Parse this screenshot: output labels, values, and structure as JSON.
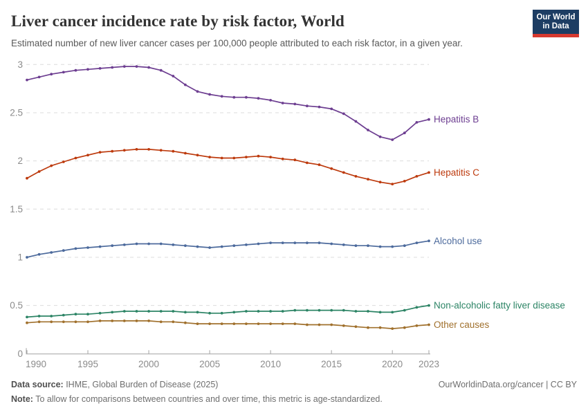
{
  "header": {
    "title": "Liver cancer incidence rate by risk factor, World",
    "subtitle": "Estimated number of new liver cancer cases per 100,000 people attributed to each risk factor, in a given year.",
    "logo": {
      "line1": "Our World",
      "line2": "in Data",
      "bg_color": "#1d3d63",
      "accent_color": "#d7392f"
    }
  },
  "chart_data": {
    "type": "line",
    "title": "Liver cancer incidence rate by risk factor, World",
    "xlabel": "",
    "ylabel": "",
    "ylim": [
      0,
      3
    ],
    "yticks": [
      0,
      0.5,
      1,
      1.5,
      2,
      2.5,
      3
    ],
    "xticks": [
      1990,
      1995,
      2000,
      2005,
      2010,
      2015,
      2020,
      2023
    ],
    "grid": true,
    "grid_color": "#dcdcdc",
    "axis_color": "#a1a1a1",
    "tick_label_color": "#8b8b8b",
    "legend_position": "right-of-line-ends",
    "x": [
      1990,
      1991,
      1992,
      1993,
      1994,
      1995,
      1996,
      1997,
      1998,
      1999,
      2000,
      2001,
      2002,
      2003,
      2004,
      2005,
      2006,
      2007,
      2008,
      2009,
      2010,
      2011,
      2012,
      2013,
      2014,
      2015,
      2016,
      2017,
      2018,
      2019,
      2020,
      2021,
      2022,
      2023
    ],
    "series": [
      {
        "name": "Hepatitis B",
        "color": "#6d3e91",
        "values": [
          2.84,
          2.87,
          2.9,
          2.92,
          2.94,
          2.95,
          2.96,
          2.97,
          2.98,
          2.98,
          2.97,
          2.94,
          2.88,
          2.79,
          2.72,
          2.69,
          2.67,
          2.66,
          2.66,
          2.65,
          2.63,
          2.6,
          2.59,
          2.57,
          2.56,
          2.54,
          2.49,
          2.41,
          2.32,
          2.25,
          2.22,
          2.29,
          2.4,
          2.43
        ]
      },
      {
        "name": "Hepatitis C",
        "color": "#bd3a0d",
        "values": [
          1.82,
          1.89,
          1.95,
          1.99,
          2.03,
          2.06,
          2.09,
          2.1,
          2.11,
          2.12,
          2.12,
          2.11,
          2.1,
          2.08,
          2.06,
          2.04,
          2.03,
          2.03,
          2.04,
          2.05,
          2.04,
          2.02,
          2.01,
          1.98,
          1.96,
          1.92,
          1.88,
          1.84,
          1.81,
          1.78,
          1.76,
          1.79,
          1.84,
          1.88
        ]
      },
      {
        "name": "Alcohol use",
        "color": "#4c6a9c",
        "values": [
          1.0,
          1.03,
          1.05,
          1.07,
          1.09,
          1.1,
          1.11,
          1.12,
          1.13,
          1.14,
          1.14,
          1.14,
          1.13,
          1.12,
          1.11,
          1.1,
          1.11,
          1.12,
          1.13,
          1.14,
          1.15,
          1.15,
          1.15,
          1.15,
          1.15,
          1.14,
          1.13,
          1.12,
          1.12,
          1.11,
          1.11,
          1.12,
          1.15,
          1.17
        ]
      },
      {
        "name": "Non-alcoholic fatty liver disease",
        "color": "#2c8465",
        "values": [
          0.38,
          0.39,
          0.39,
          0.4,
          0.41,
          0.41,
          0.42,
          0.43,
          0.44,
          0.44,
          0.44,
          0.44,
          0.44,
          0.43,
          0.43,
          0.42,
          0.42,
          0.43,
          0.44,
          0.44,
          0.44,
          0.44,
          0.45,
          0.45,
          0.45,
          0.45,
          0.45,
          0.44,
          0.44,
          0.43,
          0.43,
          0.45,
          0.48,
          0.5
        ]
      },
      {
        "name": "Other causes",
        "color": "#a0702c",
        "values": [
          0.32,
          0.33,
          0.33,
          0.33,
          0.33,
          0.33,
          0.34,
          0.34,
          0.34,
          0.34,
          0.34,
          0.33,
          0.33,
          0.32,
          0.31,
          0.31,
          0.31,
          0.31,
          0.31,
          0.31,
          0.31,
          0.31,
          0.31,
          0.3,
          0.3,
          0.3,
          0.29,
          0.28,
          0.27,
          0.27,
          0.26,
          0.27,
          0.29,
          0.3
        ]
      }
    ]
  },
  "footer": {
    "source_label": "Data source:",
    "source_text": " IHME, Global Burden of Disease (2025)",
    "rights": "OurWorldinData.org/cancer | CC BY",
    "note_label": "Note:",
    "note_text": " To allow for comparisons between countries and over time, this metric is age-standardized."
  }
}
